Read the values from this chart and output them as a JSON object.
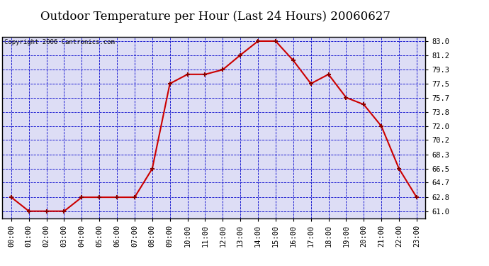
{
  "title": "Outdoor Temperature per Hour (Last 24 Hours) 20060627",
  "copyright": "Copyright 2006 Cantronics.com",
  "hours": [
    "00:00",
    "01:00",
    "02:00",
    "03:00",
    "04:00",
    "05:00",
    "06:00",
    "07:00",
    "08:00",
    "09:00",
    "10:00",
    "11:00",
    "12:00",
    "13:00",
    "14:00",
    "15:00",
    "16:00",
    "17:00",
    "18:00",
    "19:00",
    "20:00",
    "21:00",
    "22:00",
    "23:00"
  ],
  "temperatures": [
    62.8,
    61.0,
    61.0,
    61.0,
    62.8,
    62.8,
    62.8,
    62.8,
    66.5,
    77.5,
    78.7,
    78.7,
    79.3,
    81.2,
    83.0,
    83.0,
    80.5,
    77.5,
    78.7,
    75.7,
    74.8,
    72.0,
    66.5,
    62.8
  ],
  "ylim_min": 61.0,
  "ylim_max": 83.0,
  "yticks": [
    61.0,
    62.8,
    64.7,
    66.5,
    68.3,
    70.2,
    72.0,
    73.8,
    75.7,
    77.5,
    79.3,
    81.2,
    83.0
  ],
  "line_color": "#CC0000",
  "marker_color": "#880000",
  "bg_color": "#FFFFFF",
  "plot_bg_color": "#DDDDF5",
  "grid_color": "#0000CC",
  "title_fontsize": 12,
  "copyright_fontsize": 6.5,
  "tick_fontsize": 7.5
}
